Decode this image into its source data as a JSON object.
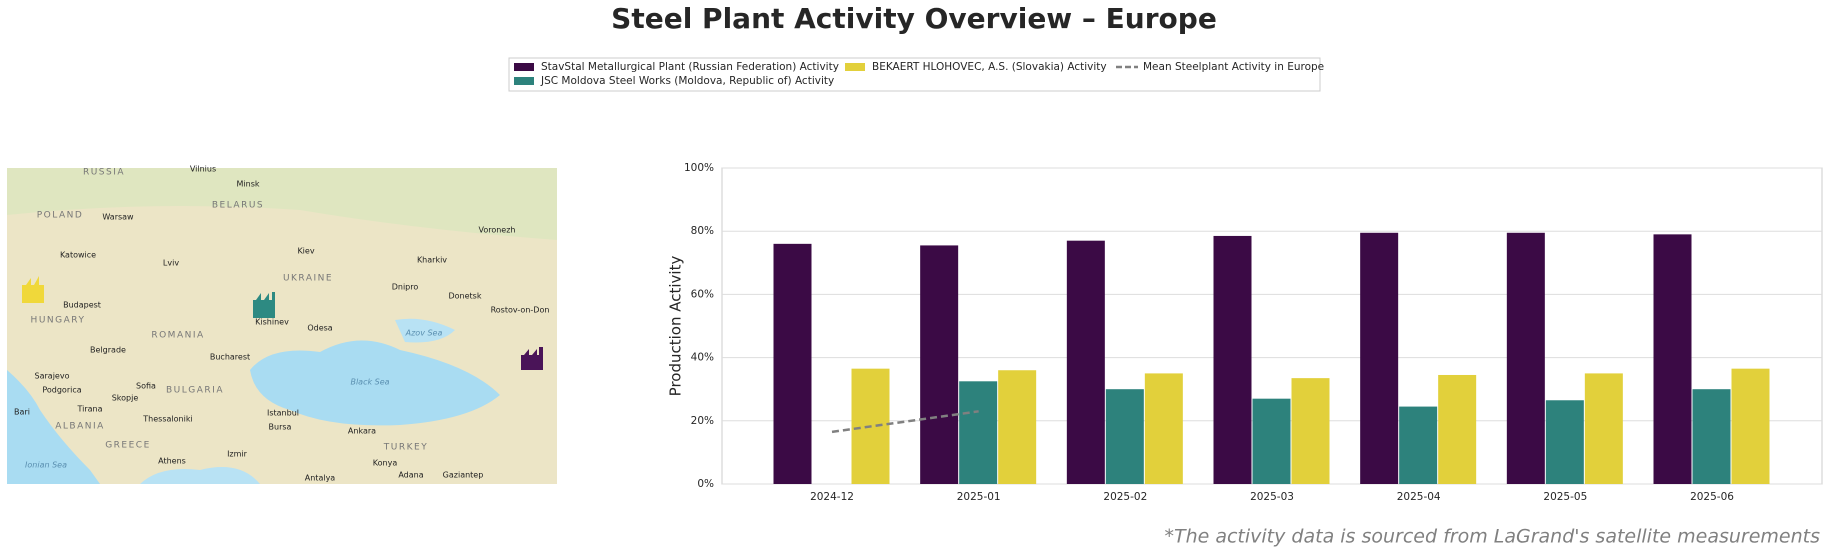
{
  "chart_data": {
    "type": "bar",
    "title": "Steel Plant Activity Overview – Europe",
    "y_label": "Production Activity",
    "footnote": "*The activity data is sourced from LaGrand's satellite measurements",
    "categories": [
      "2024-12",
      "2025-01",
      "2025-02",
      "2025-03",
      "2025-04",
      "2025-05",
      "2025-06"
    ],
    "series": [
      {
        "name": "StavStal Metallurgical Plant (Russian Federation) Activity",
        "color": "#3b0a45",
        "values": [
          76,
          75.5,
          77,
          78.5,
          79.5,
          79.5,
          79
        ]
      },
      {
        "name": "JSC Moldova Steel Works (Moldova, Republic of) Activity",
        "color": "#2d827c",
        "values": [
          null,
          32.5,
          30,
          27,
          24.5,
          26.5,
          30
        ]
      },
      {
        "name": "BEKAERT HLOHOVEC, A.S. (Slovakia) Activity",
        "color": "#e2d03b",
        "values": [
          36.5,
          36,
          35,
          33.5,
          34.5,
          35,
          36.5
        ]
      },
      {
        "name": "Mean Steelplant Activity in Europe",
        "color": "#808080",
        "line": "dashed",
        "values": [
          16.5,
          23,
          null,
          null,
          null,
          null,
          null
        ]
      }
    ],
    "ylim": [
      0,
      100
    ],
    "yticks": [
      {
        "value": 0,
        "label": "0%"
      },
      {
        "value": 20,
        "label": "20%"
      },
      {
        "value": 40,
        "label": "40%"
      },
      {
        "value": 60,
        "label": "60%"
      },
      {
        "value": 80,
        "label": "80%"
      },
      {
        "value": 100,
        "label": "100%"
      }
    ],
    "grid": true,
    "legend": "top",
    "map_labels": [
      "RUSSIA",
      "Vilnius",
      "Minsk",
      "BELARUS",
      "POLAND",
      "Warsaw",
      "Voronezh",
      "Katowice",
      "Kiev",
      "Lviv",
      "UKRAINE",
      "Kharkiv",
      "Dnipro",
      "Donetsk",
      "Budapest",
      "Rostov-on-Don",
      "HUNGARY",
      "Kishinev",
      "Odesa",
      "Azov Sea",
      "Belgrade",
      "ROMANIA",
      "Bucharest",
      "Black Sea",
      "Sarajevo",
      "BULGARIA",
      "Sofia",
      "Podgorica",
      "Skopje",
      "Tirana",
      "Thessaloniki",
      "Istanbul",
      "Bursa",
      "Ankara",
      "TURKEY",
      "GREECE",
      "Izmir",
      "Athens",
      "Konya",
      "Adana",
      "Gaziantep",
      "Antalya",
      "Bari",
      "Ionian Sea",
      "ALBANIA"
    ]
  }
}
